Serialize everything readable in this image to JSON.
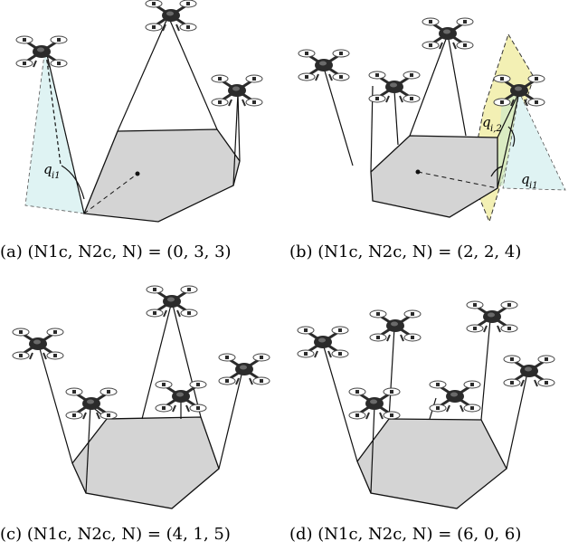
{
  "figure": {
    "panels": [
      {
        "id": "a",
        "caption": "(a) (N1c, N2c, N) = (0, 3, 3)",
        "drones": 3,
        "angle_labels": [
          {
            "main": "q",
            "sub": "i1"
          }
        ]
      },
      {
        "id": "b",
        "caption": "(b) (N1c, N2c, N) = (2, 2, 4)",
        "drones": 4,
        "angle_labels": [
          {
            "main": "q",
            "sub": "i,2"
          },
          {
            "main": "q",
            "sub": "i1"
          }
        ]
      },
      {
        "id": "c",
        "caption": "(c) (N1c, N2c, N) = (4, 1, 5)",
        "drones": 5,
        "angle_labels": []
      },
      {
        "id": "d",
        "caption": "(d) (N1c, N2c, N) = (6, 0, 6)",
        "drones": 6,
        "angle_labels": []
      }
    ]
  },
  "colors": {
    "payload_fill": "#d4d4d4",
    "payload_stroke": "#111111",
    "drone_body": "#2b2b2b",
    "cone_fill": "#dff3f3",
    "plane_fill": "#f3f0b4",
    "plane_green": "#cfe9c7"
  }
}
